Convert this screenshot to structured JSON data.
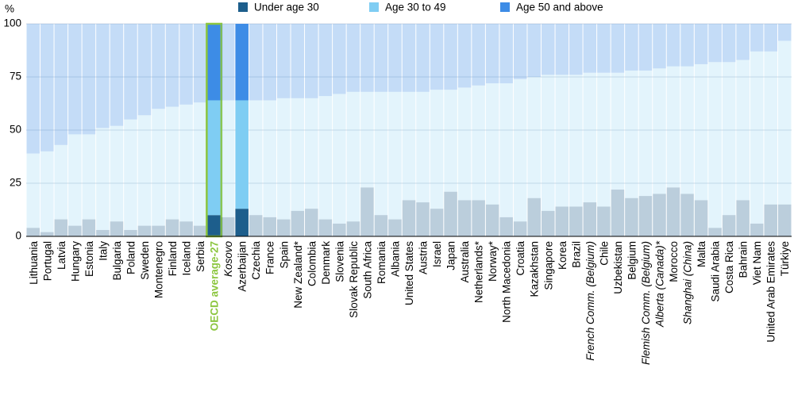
{
  "chart_data": {
    "type": "stacked_bar",
    "y_label": "%",
    "categories": [
      "Lithuania",
      "Portugal",
      "Latvia",
      "Hungary",
      "Estonia",
      "Italy",
      "Bulgaria",
      "Poland",
      "Sweden",
      "Montenegro",
      "Finland",
      "Iceland",
      "Serbia",
      "OECD average-27",
      "Kosovo",
      "Azerbaijan",
      "Czechia",
      "France",
      "Spain",
      "New Zealand*",
      "Colombia",
      "Denmark",
      "Slovenia",
      "Slovak Republic",
      "South Africa",
      "Romania",
      "Albania",
      "United States",
      "Austria",
      "Israel",
      "Japan",
      "Australia",
      "Netherlands*",
      "Norway*",
      "North Macedonia",
      "Croatia",
      "Kazakhstan",
      "Singapore",
      "Korea",
      "Brazil",
      "French Comm. (Belgium)",
      "Chile",
      "Uzbekistan",
      "Belgium",
      "Flemish Comm. (Belgium)",
      "Alberta (Canada)*",
      "Morocco",
      "Shanghai (China)",
      "Malta",
      "Saudi Arabia",
      "Costa Rica",
      "Bahrain",
      "Viet Nam",
      "United Arab Emirates",
      "Türkiye"
    ],
    "series": [
      {
        "name": "Under age 30",
        "color": "#1d5e8c",
        "values": [
          4,
          2,
          8,
          5,
          8,
          3,
          7,
          3,
          5,
          5,
          8,
          7,
          5,
          10,
          9,
          13,
          10,
          9,
          8,
          12,
          13,
          8,
          6,
          7,
          23,
          10,
          8,
          17,
          16,
          13,
          21,
          17,
          17,
          15,
          9,
          7,
          18,
          12,
          14,
          14,
          16,
          14,
          22,
          18,
          19,
          20,
          23,
          20,
          17,
          4,
          10,
          17,
          6,
          15,
          15
        ]
      },
      {
        "name": "Age 30 to 49",
        "color": "#7fcdf3",
        "values": [
          35,
          38,
          35,
          43,
          40,
          48,
          45,
          52,
          52,
          55,
          53,
          55,
          58,
          54,
          55,
          51,
          54,
          55,
          57,
          53,
          52,
          58,
          61,
          61,
          45,
          58,
          60,
          51,
          52,
          56,
          48,
          53,
          54,
          57,
          63,
          67,
          57,
          64,
          62,
          62,
          61,
          63,
          55,
          60,
          59,
          59,
          57,
          60,
          64,
          78,
          72,
          66,
          81,
          72,
          77
        ]
      },
      {
        "name": "Age 50 and above",
        "color": "#3d8ce6",
        "values": [
          61,
          60,
          57,
          52,
          52,
          49,
          48,
          45,
          43,
          40,
          39,
          38,
          37,
          36,
          36,
          36,
          36,
          36,
          35,
          35,
          35,
          34,
          33,
          32,
          32,
          32,
          32,
          32,
          32,
          31,
          31,
          30,
          29,
          28,
          28,
          26,
          25,
          24,
          24,
          24,
          23,
          23,
          23,
          22,
          22,
          21,
          20,
          20,
          19,
          18,
          18,
          17,
          13,
          13,
          8
        ]
      }
    ],
    "ylim": [
      0,
      100
    ],
    "yticks": [
      0,
      25,
      50,
      75,
      100
    ],
    "grid": true,
    "highlight_indices": [
      13,
      15
    ],
    "outlined_index": 13,
    "outline_color": "#8cc63f",
    "italic_indices": [
      14,
      40,
      44,
      45,
      47
    ]
  }
}
